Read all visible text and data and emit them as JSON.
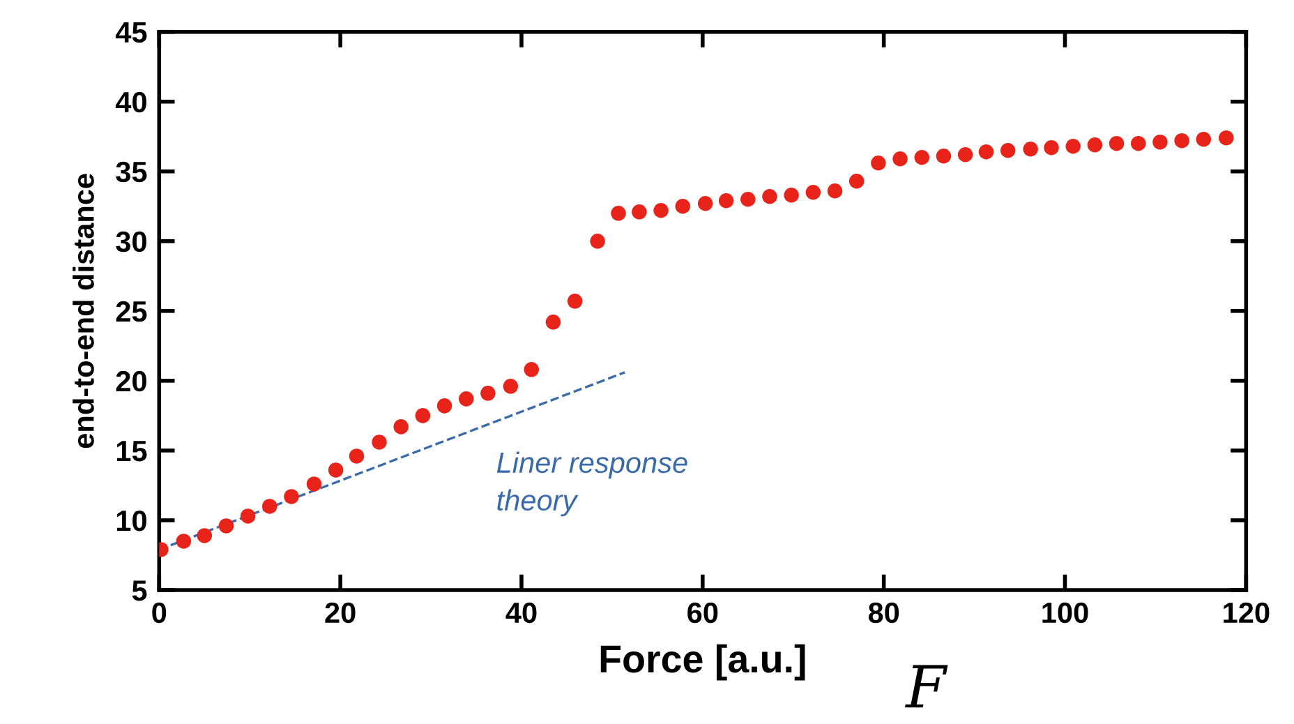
{
  "chart_data": {
    "type": "scatter",
    "xlabel": "Force [a.u.]",
    "ylabel": "end-to-end distance",
    "xlim": [
      0,
      120
    ],
    "ylim": [
      5,
      45
    ],
    "xticks": [
      0,
      20,
      40,
      60,
      80,
      100,
      120
    ],
    "yticks": [
      5,
      10,
      15,
      20,
      25,
      30,
      35,
      40,
      45
    ],
    "grid": false,
    "annotations": [
      "Liner response\ntheory",
      "F"
    ],
    "series": [
      {
        "marker": "circle",
        "color": "#e8231a",
        "x": [
          0.2,
          2.7,
          5.0,
          7.4,
          9.8,
          12.2,
          14.6,
          17.1,
          19.5,
          21.8,
          24.3,
          26.7,
          29.1,
          31.5,
          33.9,
          36.3,
          38.8,
          41.1,
          43.5,
          45.9,
          48.4,
          50.7,
          53.0,
          55.4,
          57.8,
          60.3,
          62.6,
          65.0,
          67.4,
          69.8,
          72.2,
          74.6,
          77.0,
          79.4,
          81.8,
          84.2,
          86.6,
          89.0,
          91.3,
          93.7,
          96.2,
          98.5,
          100.9,
          103.3,
          105.7,
          108.1,
          110.5,
          112.9,
          115.3,
          117.8
        ],
        "values": [
          7.9,
          8.5,
          8.9,
          9.6,
          10.3,
          11.0,
          11.7,
          12.6,
          13.6,
          14.6,
          15.6,
          16.7,
          17.5,
          18.2,
          18.7,
          19.1,
          19.6,
          20.8,
          24.2,
          25.7,
          30.0,
          32.0,
          32.1,
          32.2,
          32.5,
          32.7,
          32.9,
          33.0,
          33.2,
          33.3,
          33.5,
          33.6,
          34.3,
          35.6,
          35.9,
          36.0,
          36.1,
          36.2,
          36.4,
          36.5,
          36.6,
          36.7,
          36.8,
          36.9,
          37.0,
          37.0,
          37.1,
          37.2,
          37.3,
          37.4
        ]
      },
      {
        "type": "line",
        "color": "#3a6aa8",
        "line_style": "dashed",
        "x": [
          0,
          51.4
        ],
        "values": [
          7.9,
          20.6
        ]
      }
    ]
  }
}
